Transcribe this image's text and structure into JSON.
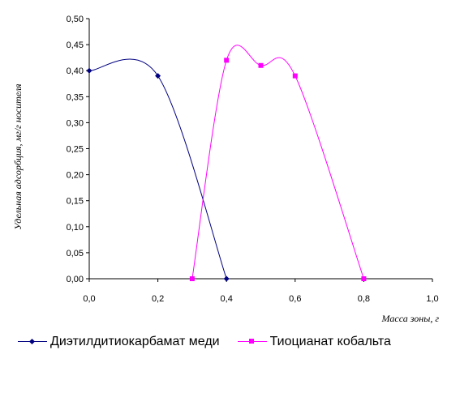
{
  "chart_data": {
    "type": "line",
    "xlabel": "Масса зоны, г",
    "ylabel": "Удельная адсорбция, мг/г носителя",
    "xlim": [
      0,
      1.0
    ],
    "ylim": [
      0,
      0.5
    ],
    "x_ticks": [
      "0,0",
      "0,2",
      "0,4",
      "0,6",
      "0,8",
      "1,0"
    ],
    "x_tick_values": [
      0,
      0.2,
      0.4,
      0.6,
      0.8,
      1.0
    ],
    "y_ticks": [
      "0,00",
      "0,05",
      "0,10",
      "0,15",
      "0,20",
      "0,25",
      "0,30",
      "0,35",
      "0,40",
      "0,45",
      "0,50"
    ],
    "y_tick_values": [
      0,
      0.05,
      0.1,
      0.15,
      0.2,
      0.25,
      0.3,
      0.35,
      0.4,
      0.45,
      0.5
    ],
    "grid": false,
    "legend_position": "bottom",
    "series": [
      {
        "name": "Диэтилдитиокарбамат меди",
        "color": "#000080",
        "marker": "diamond",
        "x": [
          0.0,
          0.2,
          0.4
        ],
        "y": [
          0.4,
          0.39,
          0.0
        ]
      },
      {
        "name": "Тиоцианат кобальта",
        "color": "#ff00ff",
        "marker": "square",
        "x": [
          0.3,
          0.4,
          0.5,
          0.6,
          0.8
        ],
        "y": [
          0.0,
          0.42,
          0.41,
          0.39,
          0.0
        ]
      }
    ]
  }
}
